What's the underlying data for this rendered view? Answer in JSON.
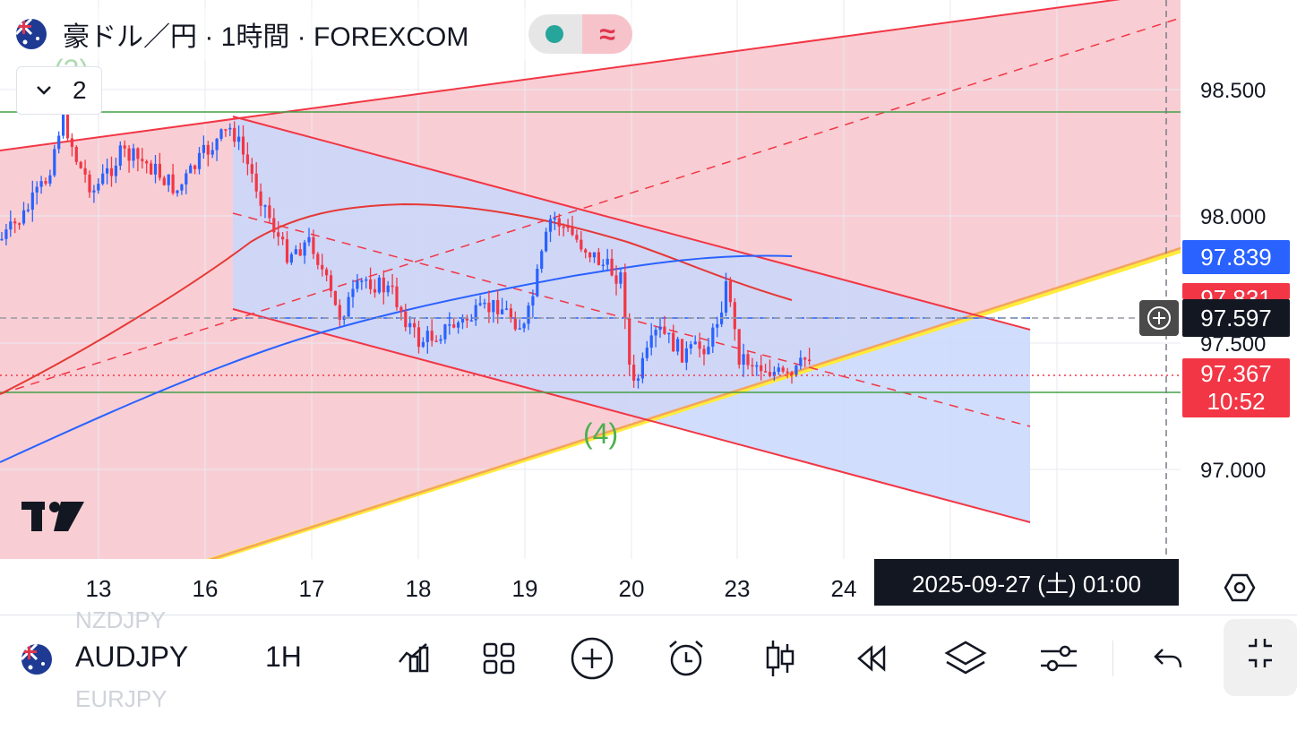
{
  "legend": {
    "title": "豪ドル／円 · 1時間 · FOREXCOM",
    "flag_icon": "australia-flag-icon",
    "status_icon": "market-open-dot-icon",
    "wave_icon": "approximately-icon",
    "collapse_count": "2"
  },
  "annotations": {
    "wave_3": "(3)",
    "wave_4": "(4)"
  },
  "price_axis": {
    "labels": [
      "98.500",
      "98.000",
      "97.500",
      "97.000"
    ],
    "ema_tag": "97.839",
    "ema_tag_color": "#2962ff",
    "hidden_tag": "97.831",
    "hidden_tag_color": "#f23645",
    "crosshair_price": "97.597",
    "last_price": "97.367",
    "countdown": "10:52",
    "last_price_color": "#f23645"
  },
  "time_axis": {
    "labels": [
      "13",
      "16",
      "17",
      "18",
      "19",
      "20",
      "23",
      "24"
    ],
    "crosshair_date": "2025-09-27 (土)   01:00"
  },
  "toolbar": {
    "symbol": "AUDJPY",
    "interval": "1H",
    "prev_symbol": "NZDJPY",
    "next_symbol": "EURJPY",
    "icons": [
      "indicators-icon",
      "layout-grid-icon",
      "add-icon",
      "alert-clock-icon",
      "candles-icon",
      "replay-icon",
      "layers-icon",
      "settings-sliders-icon",
      "undo-icon",
      "exit-fullscreen-icon"
    ]
  },
  "colors": {
    "up_candle": "#2962ff",
    "down_candle": "#f23645",
    "channel_fill": "#f7c6cc",
    "down_channel_fill": "#c9d7fb",
    "support_line": "#43a047"
  },
  "chart_data": {
    "type": "candlestick",
    "symbol": "AUDJPY",
    "timeframe": "1H",
    "x_ticks": [
      "13",
      "16",
      "17",
      "18",
      "19",
      "20",
      "23",
      "24"
    ],
    "y_ticks": [
      97.0,
      97.5,
      98.0,
      98.5
    ],
    "ylim": [
      96.6,
      98.85
    ],
    "last_price": 97.367,
    "moving_average_blue_last": 97.839,
    "horizontal_lines": [
      98.42,
      97.26
    ],
    "crosshair_price": 97.597,
    "close_path": [
      {
        "x": "12 00:00",
        "y": 97.9
      },
      {
        "x": "12 06:00",
        "y": 98.0
      },
      {
        "x": "12 12:00",
        "y": 98.15
      },
      {
        "x": "12 16:00",
        "y": 98.4
      },
      {
        "x": "12 20:00",
        "y": 98.2
      },
      {
        "x": "15 00:00",
        "y": 98.1
      },
      {
        "x": "15 06:00",
        "y": 98.25
      },
      {
        "x": "15 12:00",
        "y": 98.2
      },
      {
        "x": "15 18:00",
        "y": 98.1
      },
      {
        "x": "16 00:00",
        "y": 98.25
      },
      {
        "x": "16 06:00",
        "y": 98.35
      },
      {
        "x": "16 12:00",
        "y": 98.1
      },
      {
        "x": "16 18:00",
        "y": 97.85
      },
      {
        "x": "17 00:00",
        "y": 97.9
      },
      {
        "x": "17 06:00",
        "y": 97.6
      },
      {
        "x": "17 12:00",
        "y": 97.75
      },
      {
        "x": "17 18:00",
        "y": 97.7
      },
      {
        "x": "18 00:00",
        "y": 97.5
      },
      {
        "x": "18 06:00",
        "y": 97.55
      },
      {
        "x": "18 12:00",
        "y": 97.6
      },
      {
        "x": "18 18:00",
        "y": 97.65
      },
      {
        "x": "19 00:00",
        "y": 97.55
      },
      {
        "x": "19 06:00",
        "y": 98.0
      },
      {
        "x": "19 12:00",
        "y": 97.9
      },
      {
        "x": "19 18:00",
        "y": 97.8
      },
      {
        "x": "19 22:00",
        "y": 97.75
      },
      {
        "x": "22 00:00",
        "y": 97.3
      },
      {
        "x": "22 06:00",
        "y": 97.55
      },
      {
        "x": "22 12:00",
        "y": 97.45
      },
      {
        "x": "22 18:00",
        "y": 97.5
      },
      {
        "x": "22 22:00",
        "y": 97.75
      },
      {
        "x": "23 00:00",
        "y": 97.45
      },
      {
        "x": "23 06:00",
        "y": 97.4
      },
      {
        "x": "23 12:00",
        "y": 97.35
      },
      {
        "x": "23 18:00",
        "y": 97.5
      },
      {
        "x": "24 00:00",
        "y": 97.38
      },
      {
        "x": "24 04:00",
        "y": 97.3
      },
      {
        "x": "24 06:00",
        "y": 97.367
      }
    ]
  }
}
